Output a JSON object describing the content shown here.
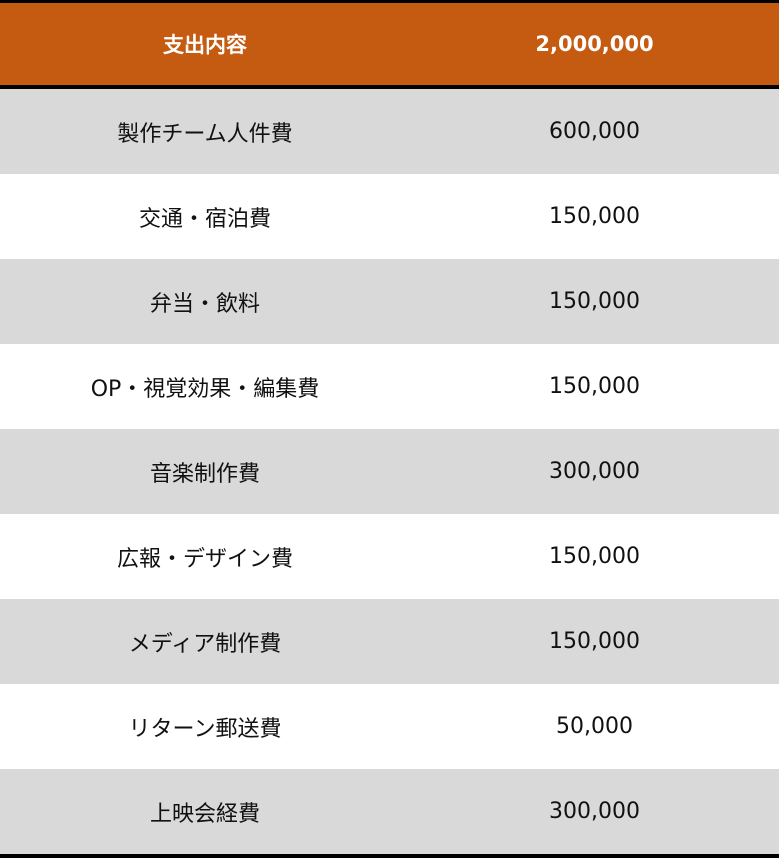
{
  "header": {
    "label": "支出内容",
    "total": "2,000,000",
    "color": "#C55A11"
  },
  "rows": [
    {
      "label": "製作チーム人件費",
      "amount": "600,000"
    },
    {
      "label": "交通・宿泊費",
      "amount": "150,000"
    },
    {
      "label": "弁当・飲料",
      "amount": "150,000"
    },
    {
      "label": "OP・視覚効果・編集費",
      "amount": "150,000"
    },
    {
      "label": "音楽制作費",
      "amount": "300,000"
    },
    {
      "label": "広報・デザイン費",
      "amount": "150,000"
    },
    {
      "label": "メディア制作費",
      "amount": "150,000"
    },
    {
      "label": "リターン郵送費",
      "amount": "50,000"
    },
    {
      "label": "上映会経費",
      "amount": "300,000"
    }
  ]
}
